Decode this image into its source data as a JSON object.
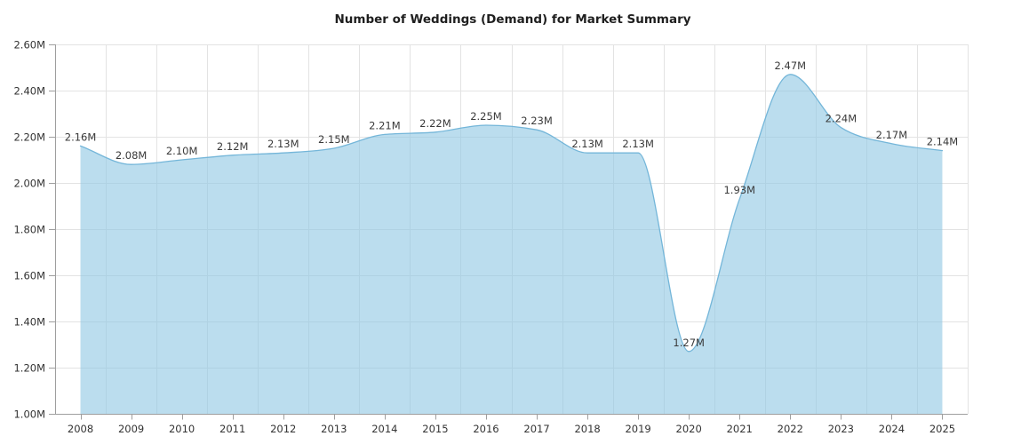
{
  "chart_data": {
    "type": "area",
    "title": "Number of Weddings (Demand) for Market Summary",
    "categories": [
      "2008",
      "2009",
      "2010",
      "2011",
      "2012",
      "2013",
      "2014",
      "2015",
      "2016",
      "2017",
      "2018",
      "2019",
      "2020",
      "2021",
      "2022",
      "2023",
      "2024",
      "2025"
    ],
    "values": [
      2.16,
      2.08,
      2.1,
      2.12,
      2.13,
      2.15,
      2.21,
      2.22,
      2.25,
      2.23,
      2.13,
      2.13,
      1.27,
      1.93,
      2.47,
      2.24,
      2.17,
      2.14
    ],
    "data_labels": [
      "2.16M",
      "2.08M",
      "2.10M",
      "2.12M",
      "2.13M",
      "2.15M",
      "2.21M",
      "2.22M",
      "2.25M",
      "2.23M",
      "2.13M",
      "2.13M",
      "1.27M",
      "1.93M",
      "2.47M",
      "2.24M",
      "2.17M",
      "2.14M"
    ],
    "ytick_labels": [
      "2.60M",
      "2.40M",
      "2.20M",
      "2.00M",
      "1.80M",
      "1.60M",
      "1.40M",
      "1.20M",
      "1.00M"
    ],
    "ylim": [
      1.0,
      2.6
    ],
    "ytick_step": 0.2,
    "grid": true,
    "legend": "none",
    "smoothing": "monotone",
    "colors": {
      "fill": "#92c8e4",
      "fill_opacity": "0.62",
      "line": "#74b6d9",
      "grid": "#e3e3e3",
      "axis": "#9e9e9e",
      "tick_text": "#333333",
      "data_label_text": "#3a3a3a",
      "title_text": "#1f1f1f",
      "background": "#ffffff"
    }
  }
}
